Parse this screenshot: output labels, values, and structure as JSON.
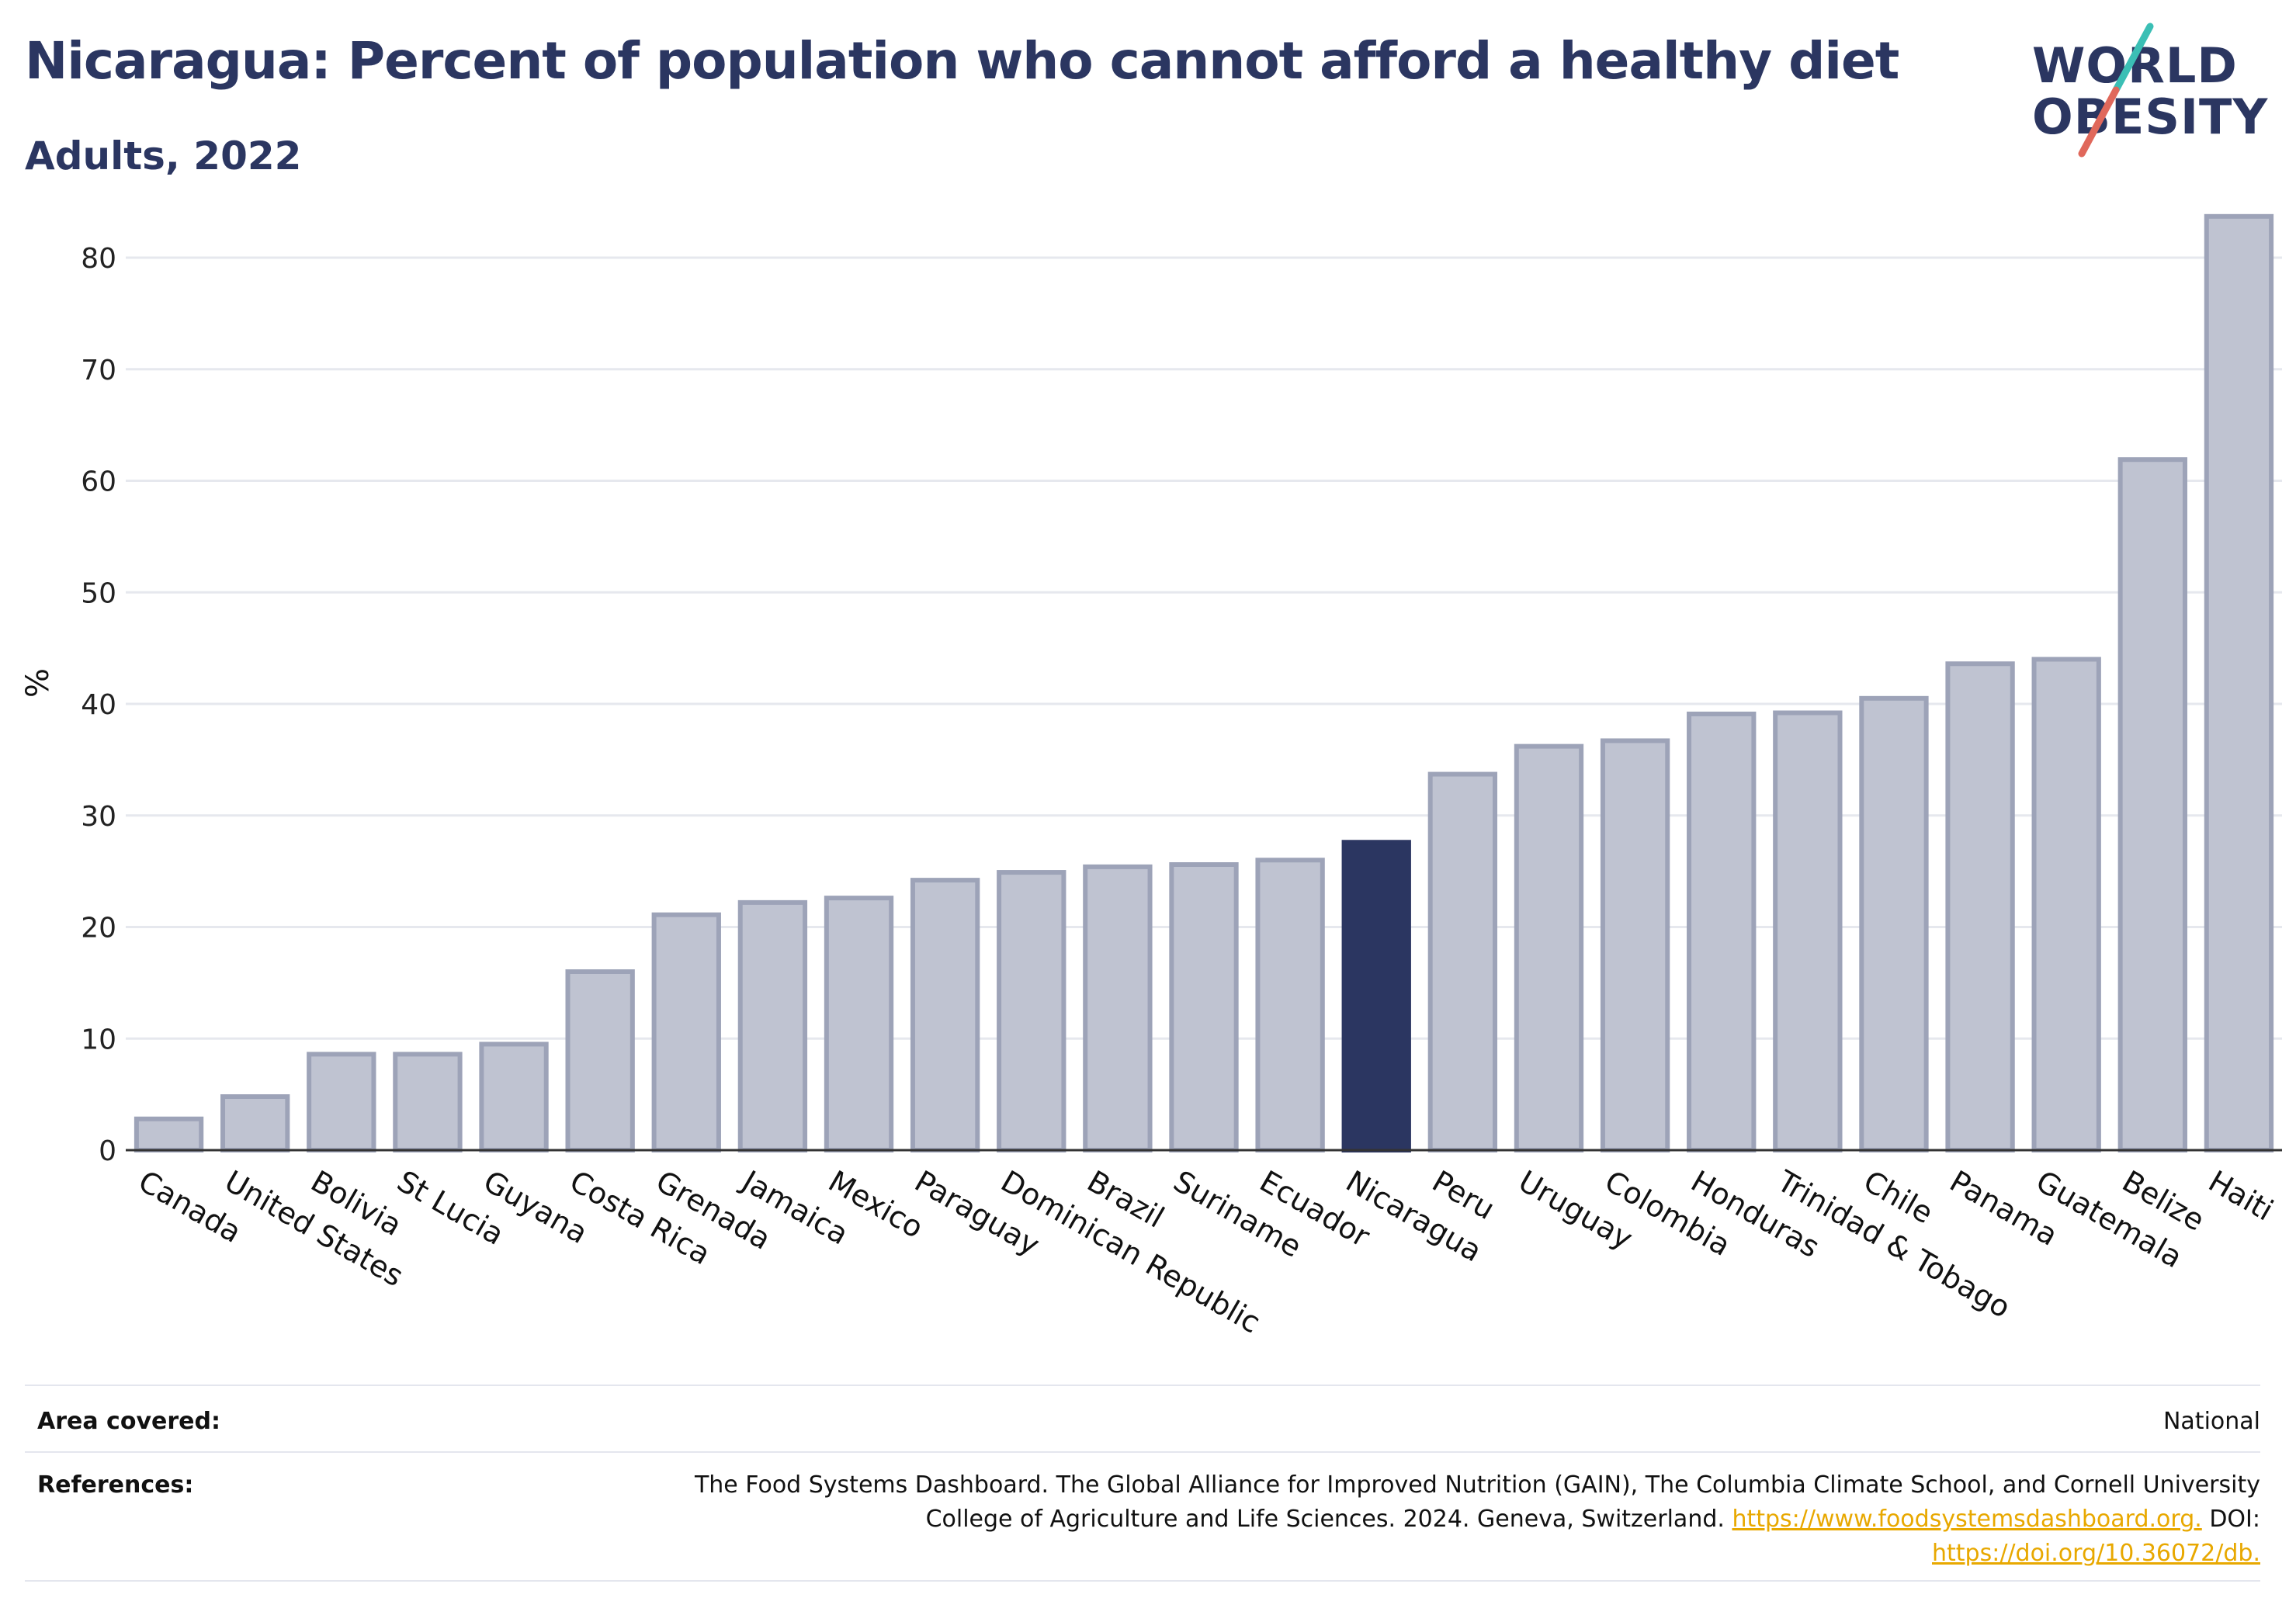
{
  "header": {
    "title": "Nicaragua: Percent of population who cannot afford a healthy diet",
    "subtitle": "Adults, 2022"
  },
  "logo": {
    "line1": "WORLD",
    "line2": "OBESITY",
    "text_color": "#2b3661",
    "slash_colors": [
      "#3bbfb5",
      "#e0685b"
    ]
  },
  "colors": {
    "bar": "#bfc3d1",
    "bar_border": "#9da3b8",
    "highlight": "#2b3661",
    "grid": "#e6e8ee",
    "axis": "#333333"
  },
  "chart_data": {
    "type": "bar",
    "ylabel": "%",
    "ylim": [
      0,
      87
    ],
    "yticks": [
      0,
      10,
      20,
      30,
      40,
      50,
      60,
      70,
      80
    ],
    "grid": true,
    "highlight": "Nicaragua",
    "categories": [
      "Canada",
      "United States",
      "Bolivia",
      "St Lucia",
      "Guyana",
      "Costa Rica",
      "Grenada",
      "Jamaica",
      "Mexico",
      "Paraguay",
      "Dominican Republic",
      "Brazil",
      "Suriname",
      "Ecuador",
      "Nicaragua",
      "Peru",
      "Uruguay",
      "Colombia",
      "Honduras",
      "Trinidad & Tobago",
      "Chile",
      "Panama",
      "Guatemala",
      "Belize",
      "Haiti"
    ],
    "values": [
      2.8,
      4.8,
      8.6,
      8.6,
      9.5,
      16.0,
      21.1,
      22.2,
      22.6,
      24.2,
      24.9,
      25.4,
      25.6,
      26.0,
      27.6,
      33.7,
      36.2,
      36.7,
      39.1,
      39.2,
      40.5,
      43.6,
      44.0,
      61.9,
      83.7
    ]
  },
  "footer": {
    "area_label": "Area covered:",
    "area_value": "National",
    "ref_label": "References:",
    "ref_line1": "The Food Systems Dashboard. The Global Alliance for Improved Nutrition (GAIN), The Columbia Climate School, and Cornell University",
    "ref_line2_text": "College of Agriculture and Life Sciences. 2024. Geneva, Switzerland.",
    "ref_link1": "https://www.foodsystemsdashboard.org.",
    "ref_doi_label": "DOI:",
    "ref_link2": "https://doi.org/10.36072/db."
  }
}
